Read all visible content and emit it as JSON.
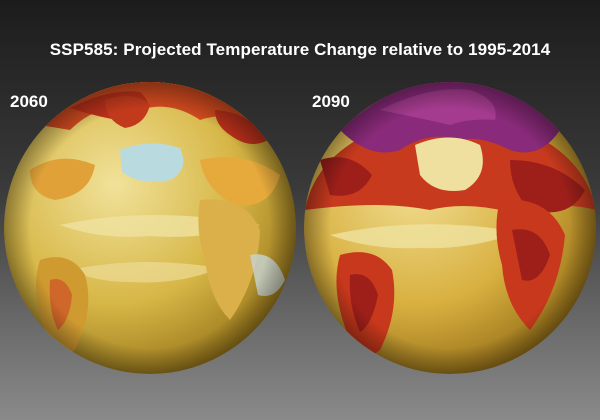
{
  "title": "SSP585: Projected Temperature Change relative to 1995-2014",
  "panels": [
    {
      "label": "2060"
    },
    {
      "label": "2090"
    }
  ],
  "colors": {
    "base_yellow": "#d8b94a",
    "pale_yellow": "#efe2a0",
    "orange": "#e08a2a",
    "red": "#c8381c",
    "dark_red": "#9e1f1a",
    "purple": "#8a2a7a",
    "ice_blue": "#b9dbe0"
  }
}
